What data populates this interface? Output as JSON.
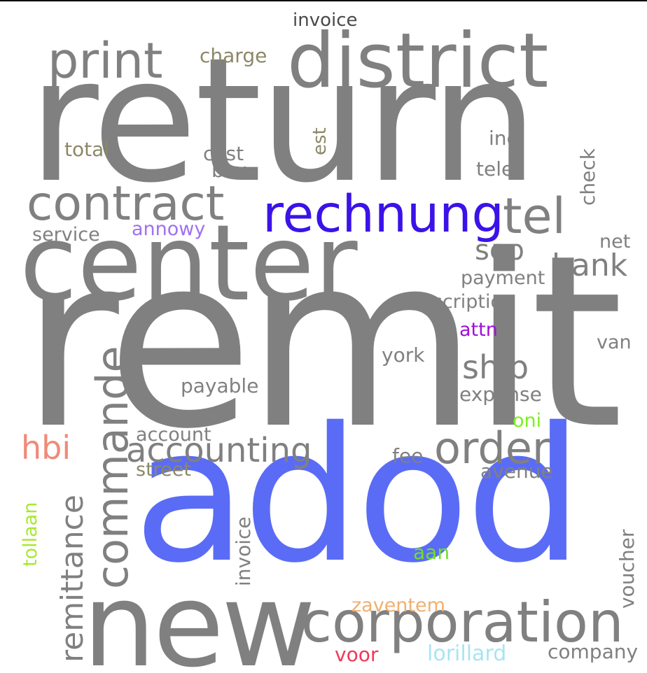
{
  "words": [
    {
      "key": "return",
      "text": "return",
      "color": "#808080"
    },
    {
      "key": "remit",
      "text": "remit",
      "color": "#808080"
    },
    {
      "key": "adod",
      "text": "adod",
      "color": "#5a6cf5"
    },
    {
      "key": "center",
      "text": "center",
      "color": "#808080"
    },
    {
      "key": "district",
      "text": "district",
      "color": "#808080"
    },
    {
      "key": "new",
      "text": "new",
      "color": "#808080"
    },
    {
      "key": "corporation",
      "text": "corporation",
      "color": "#808080"
    },
    {
      "key": "rechnung",
      "text": "rechnung",
      "color": "#3b12e8"
    },
    {
      "key": "contract",
      "text": "contract",
      "color": "#808080"
    },
    {
      "key": "print",
      "text": "print",
      "color": "#808080"
    },
    {
      "key": "commande",
      "text": "commande",
      "color": "#808080"
    },
    {
      "key": "tel",
      "text": "tel",
      "color": "#808080"
    },
    {
      "key": "order",
      "text": "order",
      "color": "#808080"
    },
    {
      "key": "accounting",
      "text": "accounting",
      "color": "#808080"
    },
    {
      "key": "remittance",
      "text": "remittance",
      "color": "#808080"
    },
    {
      "key": "ship",
      "text": "ship",
      "color": "#808080"
    },
    {
      "key": "bank",
      "text": "bank",
      "color": "#808080"
    },
    {
      "key": "sep",
      "text": "sep",
      "color": "#808080"
    },
    {
      "key": "hbi",
      "text": "hbi",
      "color": "#f08a78"
    },
    {
      "key": "invoice_top",
      "text": "invoice",
      "color": "#4a4a4a"
    },
    {
      "key": "charge",
      "text": "charge",
      "color": "#8c8868"
    },
    {
      "key": "total",
      "text": "total",
      "color": "#8c8868"
    },
    {
      "key": "cost",
      "text": "cost",
      "color": "#808080"
    },
    {
      "key": "box",
      "text": "box",
      "color": "#808080"
    },
    {
      "key": "est",
      "text": "est",
      "color": "#8c8868"
    },
    {
      "key": "inc",
      "text": "inc",
      "color": "#808080"
    },
    {
      "key": "telex",
      "text": "telex",
      "color": "#808080"
    },
    {
      "key": "check",
      "text": "check",
      "color": "#808080"
    },
    {
      "key": "service",
      "text": "service",
      "color": "#808080"
    },
    {
      "key": "annowy",
      "text": "annowy",
      "color": "#a070f0"
    },
    {
      "key": "net",
      "text": "net",
      "color": "#808080"
    },
    {
      "key": "payment",
      "text": "payment",
      "color": "#808080"
    },
    {
      "key": "description",
      "text": "description",
      "color": "#808080"
    },
    {
      "key": "attn",
      "text": "attn",
      "color": "#a010d8"
    },
    {
      "key": "van",
      "text": "van",
      "color": "#808080"
    },
    {
      "key": "york",
      "text": "york",
      "color": "#808080"
    },
    {
      "key": "payable",
      "text": "payable",
      "color": "#808080"
    },
    {
      "key": "expense",
      "text": "expense",
      "color": "#808080"
    },
    {
      "key": "oni",
      "text": "oni",
      "color": "#7cf020"
    },
    {
      "key": "account",
      "text": "account",
      "color": "#808080"
    },
    {
      "key": "fee",
      "text": "fee",
      "color": "#808080"
    },
    {
      "key": "street",
      "text": "street",
      "color": "#8c8868"
    },
    {
      "key": "avenue",
      "text": "avenue",
      "color": "#808080"
    },
    {
      "key": "tollaan",
      "text": "tollaan",
      "color": "#a8e830"
    },
    {
      "key": "invoice_v",
      "text": "invoice",
      "color": "#808080"
    },
    {
      "key": "aan",
      "text": "aan",
      "color": "#70e020"
    },
    {
      "key": "voucher",
      "text": "voucher",
      "color": "#808080"
    },
    {
      "key": "zaventem",
      "text": "zaventem",
      "color": "#f0b070"
    },
    {
      "key": "voor",
      "text": "voor",
      "color": "#f03858"
    },
    {
      "key": "lorillard",
      "text": "lorillard",
      "color": "#a8e4f4"
    },
    {
      "key": "company",
      "text": "company",
      "color": "#808080"
    }
  ]
}
